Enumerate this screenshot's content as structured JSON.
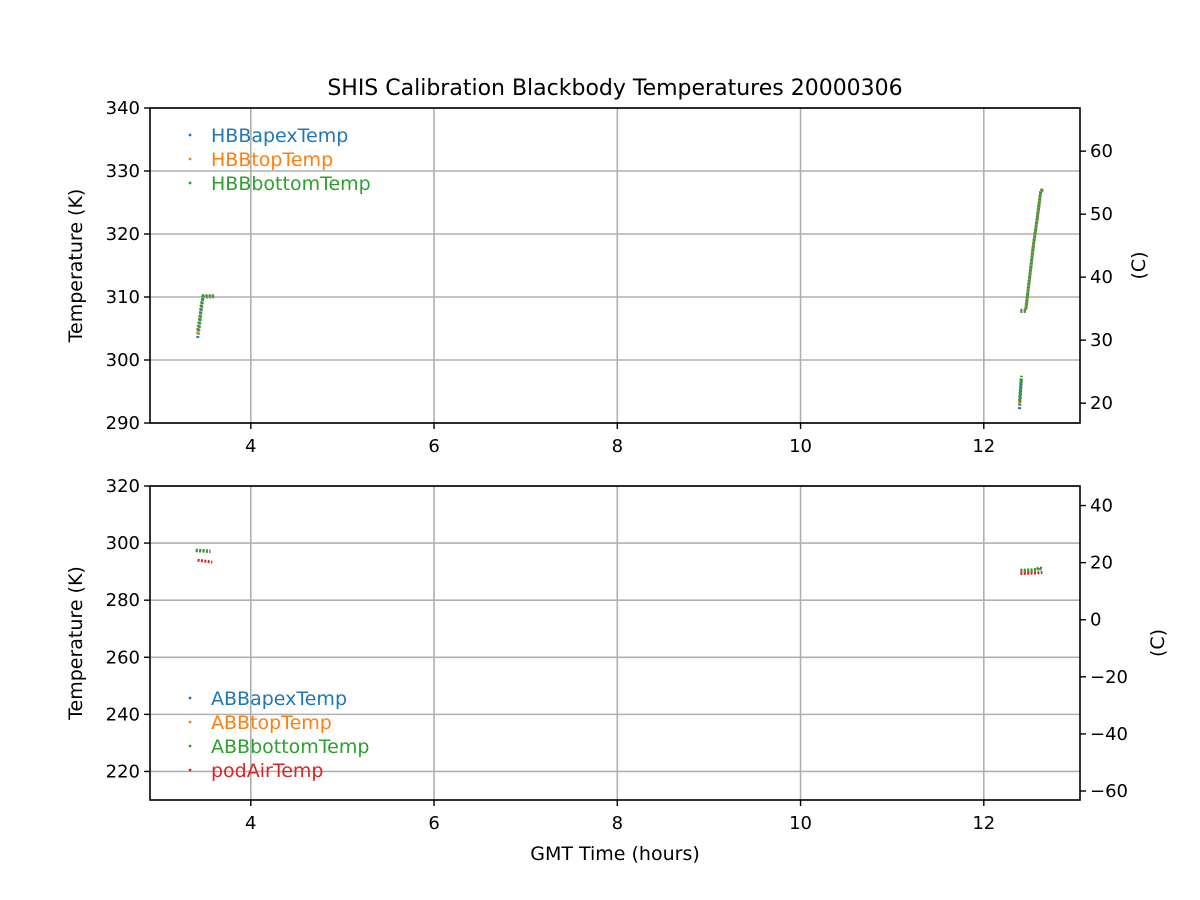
{
  "chart_data": [
    {
      "type": "scatter",
      "title": "SHIS Calibration Blackbody Temperatures 20000306",
      "xlabel": "",
      "ylabel": "Temperature (K)",
      "ylabel_right": "(C)",
      "xlim": [
        2.9,
        13.05
      ],
      "ylim": [
        290,
        340
      ],
      "xticks": [
        4,
        6,
        8,
        10,
        12
      ],
      "yticks": [
        290,
        300,
        310,
        320,
        330,
        340
      ],
      "yticks_right": [
        20,
        30,
        40,
        50,
        60
      ],
      "grid": true,
      "legend_position": "upper-left",
      "series": [
        {
          "name": "HBBapexTemp",
          "color": "#1f77b4",
          "segments": [
            [
              [
                3.42,
                303.5
              ],
              [
                3.44,
                305.5
              ],
              [
                3.46,
                308.0
              ],
              [
                3.48,
                310.0
              ],
              [
                3.52,
                310.0
              ],
              [
                3.56,
                310.0
              ],
              [
                3.6,
                310.0
              ]
            ],
            [
              [
                12.39,
                292.2
              ],
              [
                12.4,
                294.5
              ],
              [
                12.41,
                297.0
              ]
            ],
            [
              [
                12.4,
                307.7
              ],
              [
                12.43,
                307.7
              ],
              [
                12.46,
                307.7
              ]
            ],
            [
              [
                12.46,
                308.0
              ],
              [
                12.5,
                313.0
              ],
              [
                12.54,
                318.0
              ],
              [
                12.58,
                322.0
              ],
              [
                12.62,
                326.5
              ],
              [
                12.64,
                327.0
              ]
            ]
          ]
        },
        {
          "name": "HBBtopTemp",
          "color": "#ff7f0e",
          "segments": [
            [
              [
                3.42,
                304.2
              ],
              [
                3.44,
                306.0
              ],
              [
                3.46,
                308.5
              ],
              [
                3.48,
                310.1
              ],
              [
                3.52,
                310.1
              ],
              [
                3.56,
                310.1
              ],
              [
                3.6,
                310.1
              ]
            ],
            [
              [
                12.39,
                293.0
              ],
              [
                12.4,
                295.0
              ],
              [
                12.41,
                297.3
              ]
            ],
            [
              [
                12.4,
                307.8
              ],
              [
                12.43,
                307.8
              ],
              [
                12.46,
                307.8
              ]
            ],
            [
              [
                12.46,
                308.1
              ],
              [
                12.5,
                313.1
              ],
              [
                12.54,
                318.1
              ],
              [
                12.58,
                322.1
              ],
              [
                12.62,
                326.6
              ],
              [
                12.64,
                327.1
              ]
            ]
          ]
        },
        {
          "name": "HBBbottomTemp",
          "color": "#2ca02c",
          "segments": [
            [
              [
                3.42,
                304.7
              ],
              [
                3.44,
                306.5
              ],
              [
                3.46,
                308.8
              ],
              [
                3.48,
                310.2
              ],
              [
                3.52,
                310.2
              ],
              [
                3.56,
                310.2
              ],
              [
                3.6,
                310.2
              ]
            ],
            [
              [
                12.39,
                293.5
              ],
              [
                12.4,
                295.5
              ],
              [
                12.41,
                297.5
              ]
            ],
            [
              [
                12.4,
                307.9
              ],
              [
                12.43,
                307.9
              ],
              [
                12.46,
                307.9
              ]
            ],
            [
              [
                12.46,
                308.2
              ],
              [
                12.5,
                313.2
              ],
              [
                12.54,
                318.2
              ],
              [
                12.58,
                322.2
              ],
              [
                12.62,
                326.7
              ],
              [
                12.64,
                327.2
              ]
            ]
          ]
        }
      ]
    },
    {
      "type": "scatter",
      "title": "",
      "xlabel": "GMT Time (hours)",
      "ylabel": "Temperature (K)",
      "ylabel_right": "(C)",
      "xlim": [
        2.9,
        13.05
      ],
      "ylim": [
        210,
        320
      ],
      "xticks": [
        4,
        6,
        8,
        10,
        12
      ],
      "yticks": [
        220,
        240,
        260,
        280,
        300,
        320
      ],
      "yticks_right": [
        -60,
        -40,
        -20,
        0,
        20,
        40
      ],
      "grid": true,
      "legend_position": "lower-left",
      "series": [
        {
          "name": "ABBapexTemp",
          "color": "#1f77b4",
          "segments": [
            [
              [
                3.4,
                297.3
              ],
              [
                3.48,
                297.2
              ],
              [
                3.56,
                297.0
              ]
            ],
            [
              [
                12.4,
                290.2
              ],
              [
                12.5,
                290.3
              ],
              [
                12.58,
                290.5
              ],
              [
                12.6,
                291.2
              ],
              [
                12.64,
                290.8
              ]
            ]
          ]
        },
        {
          "name": "ABBtopTemp",
          "color": "#ff7f0e",
          "segments": [
            [
              [
                3.4,
                297.4
              ],
              [
                3.48,
                297.3
              ],
              [
                3.56,
                297.1
              ]
            ],
            [
              [
                12.4,
                290.3
              ],
              [
                12.5,
                290.4
              ],
              [
                12.58,
                290.6
              ],
              [
                12.6,
                291.3
              ],
              [
                12.64,
                290.9
              ]
            ]
          ]
        },
        {
          "name": "ABBbottomTemp",
          "color": "#2ca02c",
          "segments": [
            [
              [
                3.4,
                297.5
              ],
              [
                3.48,
                297.4
              ],
              [
                3.56,
                297.2
              ]
            ],
            [
              [
                12.4,
                290.5
              ],
              [
                12.5,
                290.6
              ],
              [
                12.58,
                290.8
              ],
              [
                12.6,
                291.5
              ],
              [
                12.64,
                291.0
              ]
            ]
          ]
        },
        {
          "name": "podAirTemp",
          "color": "#d62728",
          "segments": [
            [
              [
                3.42,
                294.0
              ],
              [
                3.5,
                293.7
              ],
              [
                3.58,
                293.3
              ]
            ],
            [
              [
                12.4,
                289.3
              ],
              [
                12.5,
                289.4
              ],
              [
                12.6,
                289.6
              ],
              [
                12.64,
                289.7
              ]
            ]
          ]
        }
      ]
    }
  ]
}
